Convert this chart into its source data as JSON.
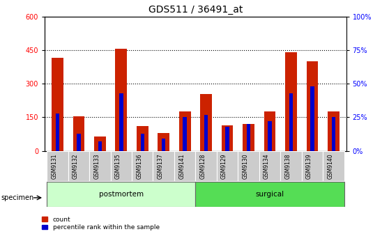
{
  "title": "GDS511 / 36491_at",
  "samples": [
    "GSM9131",
    "GSM9132",
    "GSM9133",
    "GSM9135",
    "GSM9136",
    "GSM9137",
    "GSM9141",
    "GSM9128",
    "GSM9129",
    "GSM9130",
    "GSM9134",
    "GSM9138",
    "GSM9139",
    "GSM9140"
  ],
  "counts": [
    415,
    155,
    65,
    455,
    110,
    80,
    175,
    255,
    115,
    120,
    175,
    440,
    400,
    175
  ],
  "percentiles_scaled": [
    168,
    78,
    42,
    258,
    78,
    54,
    150,
    162,
    108,
    120,
    132,
    258,
    288,
    150
  ],
  "groups": [
    {
      "name": "postmortem",
      "start": 0,
      "end": 7,
      "color": "#ccffcc"
    },
    {
      "name": "surgical",
      "start": 7,
      "end": 14,
      "color": "#55dd55"
    }
  ],
  "ylim_left": [
    0,
    600
  ],
  "ylim_right": [
    0,
    100
  ],
  "yticks_left": [
    0,
    150,
    300,
    450,
    600
  ],
  "yticks_right": [
    0,
    25,
    50,
    75,
    100
  ],
  "bar_color_red": "#cc2200",
  "bar_color_blue": "#0000cc",
  "bar_width": 0.55,
  "blue_bar_width": 0.18,
  "tick_bg_color": "#cccccc",
  "legend_count_label": "count",
  "legend_pct_label": "percentile rank within the sample",
  "specimen_label": "specimen",
  "title_fontsize": 10,
  "axis_fontsize": 7,
  "label_fontsize": 7.5
}
